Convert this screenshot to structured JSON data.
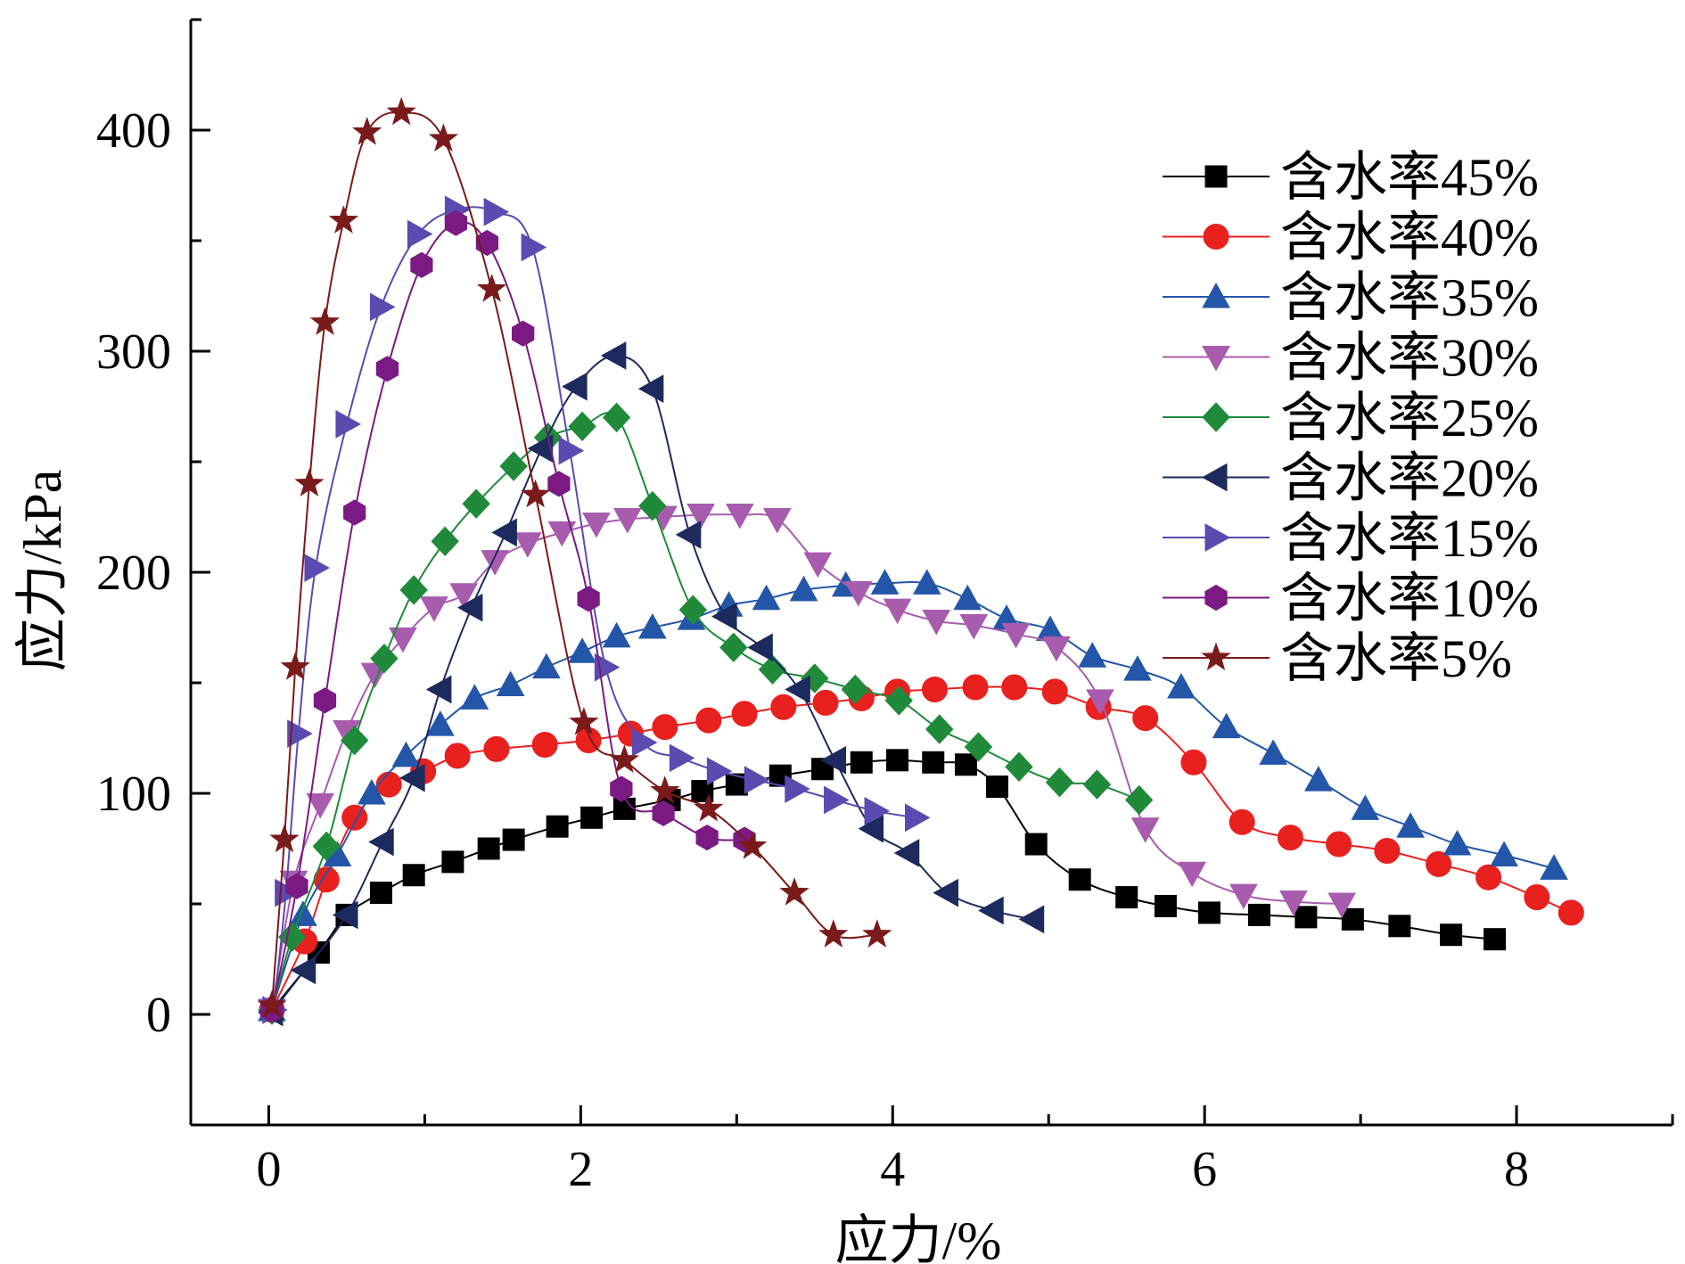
{
  "chart_data": {
    "type": "line",
    "xlabel": "应力/%",
    "ylabel": "应力/kPa",
    "xlim": [
      -0.5,
      9.0
    ],
    "ylim": [
      -50,
      450
    ],
    "xticks": [
      0,
      2,
      4,
      6,
      8
    ],
    "yticks": [
      0,
      100,
      200,
      300,
      400
    ],
    "legend_position": "top-right",
    "grid": false,
    "series": [
      {
        "name": "含水率45%",
        "color": "#000000",
        "marker": "square",
        "x": [
          0.02,
          0.32,
          0.5,
          0.72,
          0.93,
          1.18,
          1.41,
          1.57,
          1.85,
          2.07,
          2.28,
          2.57,
          2.78,
          3.0,
          3.28,
          3.55,
          3.8,
          4.03,
          4.26,
          4.47,
          4.67,
          4.92,
          5.2,
          5.5,
          5.75,
          6.03,
          6.35,
          6.65,
          6.95,
          7.25,
          7.58,
          7.86
        ],
        "y": [
          2,
          28,
          45,
          55,
          63,
          69,
          75,
          79,
          85,
          89,
          93,
          97,
          101,
          104,
          108,
          111,
          114,
          115,
          114,
          113,
          103,
          77,
          61,
          53,
          49,
          46,
          45,
          44,
          43,
          40,
          36,
          34
        ]
      },
      {
        "name": "含水率40%",
        "color": "#e8201e",
        "marker": "circle",
        "x": [
          0.02,
          0.23,
          0.37,
          0.55,
          0.77,
          0.99,
          1.21,
          1.46,
          1.77,
          2.05,
          2.32,
          2.54,
          2.82,
          3.05,
          3.3,
          3.57,
          3.8,
          4.03,
          4.27,
          4.53,
          4.78,
          5.04,
          5.32,
          5.62,
          5.93,
          6.24,
          6.55,
          6.86,
          7.17,
          7.5,
          7.82,
          8.13,
          8.35
        ],
        "y": [
          2,
          33,
          61,
          89,
          104,
          110,
          117,
          120,
          122,
          124,
          127,
          130,
          133,
          136,
          139,
          141,
          143,
          146,
          147,
          148,
          148,
          146,
          139,
          134,
          114,
          87,
          80,
          77,
          74,
          68,
          62,
          53,
          46
        ]
      },
      {
        "name": "含水率35%",
        "color": "#2356a8",
        "marker": "triangle-up",
        "x": [
          0.02,
          0.22,
          0.44,
          0.66,
          0.88,
          1.1,
          1.32,
          1.55,
          1.78,
          2.01,
          2.23,
          2.46,
          2.71,
          2.95,
          3.19,
          3.43,
          3.7,
          3.95,
          4.22,
          4.48,
          4.73,
          5.01,
          5.28,
          5.57,
          5.85,
          6.14,
          6.44,
          6.73,
          7.03,
          7.32,
          7.62,
          7.92,
          8.24
        ],
        "y": [
          2,
          45,
          72,
          100,
          117,
          131,
          143,
          149,
          157,
          164,
          171,
          175,
          179,
          185,
          188,
          192,
          194,
          195,
          195,
          188,
          179,
          174,
          162,
          156,
          148,
          130,
          118,
          106,
          93,
          85,
          77,
          72,
          66
        ]
      },
      {
        "name": "含水率30%",
        "color": "#a85cae",
        "marker": "triangle-down",
        "x": [
          0.02,
          0.16,
          0.33,
          0.5,
          0.68,
          0.86,
          1.06,
          1.25,
          1.45,
          1.66,
          1.88,
          2.1,
          2.3,
          2.53,
          2.77,
          3.02,
          3.26,
          3.52,
          3.78,
          4.03,
          4.28,
          4.52,
          4.79,
          5.05,
          5.33,
          5.62,
          5.92,
          6.25,
          6.57,
          6.88
        ],
        "y": [
          2,
          60,
          95,
          128,
          154,
          170,
          184,
          190,
          205,
          213,
          218,
          222,
          224,
          225,
          226,
          226,
          224,
          204,
          191,
          183,
          178,
          176,
          172,
          166,
          142,
          84,
          64,
          54,
          51,
          50
        ]
      },
      {
        "name": "含水率25%",
        "color": "#1f8a3a",
        "marker": "diamond",
        "x": [
          0.02,
          0.15,
          0.37,
          0.55,
          0.74,
          0.93,
          1.13,
          1.33,
          1.57,
          1.79,
          2.01,
          2.23,
          2.46,
          2.72,
          2.98,
          3.23,
          3.5,
          3.76,
          4.04,
          4.3,
          4.55,
          4.81,
          5.07,
          5.31,
          5.58
        ],
        "y": [
          2,
          35,
          76,
          124,
          161,
          192,
          214,
          231,
          248,
          261,
          266,
          270,
          230,
          183,
          166,
          156,
          152,
          147,
          142,
          129,
          121,
          112,
          105,
          104,
          97
        ]
      },
      {
        "name": "含水率20%",
        "color": "#1c2a5e",
        "marker": "triangle-left",
        "x": [
          0.02,
          0.23,
          0.5,
          0.73,
          0.93,
          1.1,
          1.3,
          1.52,
          1.75,
          1.97,
          2.22,
          2.46,
          2.7,
          2.93,
          3.16,
          3.4,
          3.63,
          3.87,
          4.1,
          4.35,
          4.64,
          4.9
        ],
        "y": [
          1,
          20,
          45,
          78,
          107,
          147,
          184,
          218,
          256,
          284,
          298,
          283,
          217,
          180,
          166,
          147,
          115,
          84,
          73,
          55,
          47,
          43
        ]
      },
      {
        "name": "含水率15%",
        "color": "#5b4ab0",
        "marker": "triangle-right",
        "x": [
          0.03,
          0.11,
          0.19,
          0.3,
          0.5,
          0.72,
          0.96,
          1.2,
          1.45,
          1.69,
          1.93,
          2.16,
          2.4,
          2.64,
          2.88,
          3.12,
          3.38,
          3.63,
          3.89,
          4.15
        ],
        "y": [
          2,
          55,
          127,
          202,
          267,
          320,
          353,
          364,
          363,
          347,
          255,
          157,
          123,
          116,
          110,
          106,
          102,
          97,
          92,
          89
        ]
      },
      {
        "name": "含水率10%",
        "color": "#7a1a82",
        "marker": "hexagon",
        "x": [
          0.02,
          0.18,
          0.36,
          0.55,
          0.76,
          0.98,
          1.2,
          1.4,
          1.63,
          1.86,
          2.05,
          2.26,
          2.53,
          2.81,
          3.05
        ],
        "y": [
          2,
          58,
          142,
          227,
          292,
          339,
          358,
          349,
          308,
          240,
          188,
          102,
          91,
          80,
          79
        ]
      },
      {
        "name": "含水率5%",
        "color": "#7a1a1a",
        "marker": "star",
        "x": [
          0.02,
          0.1,
          0.17,
          0.26,
          0.36,
          0.48,
          0.63,
          0.85,
          1.12,
          1.43,
          1.71,
          2.02,
          2.28,
          2.54,
          2.82,
          3.1,
          3.37,
          3.62,
          3.9
        ],
        "y": [
          4,
          79,
          157,
          240,
          313,
          359,
          399,
          408,
          396,
          328,
          235,
          132,
          115,
          101,
          93,
          76,
          55,
          36,
          36
        ]
      }
    ]
  }
}
